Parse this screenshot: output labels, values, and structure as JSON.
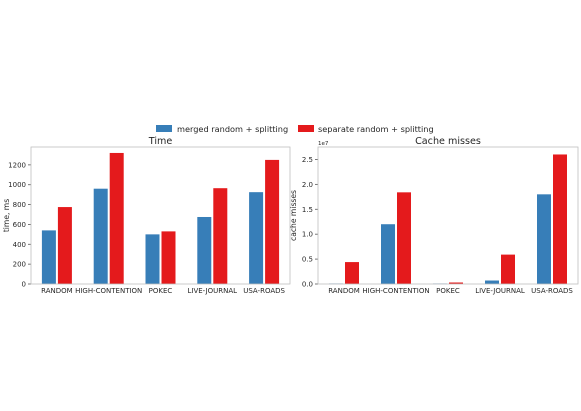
{
  "legend": {
    "placement": "top-center",
    "entries": [
      {
        "label": "merged random + splitting",
        "color": "#377eb8"
      },
      {
        "label": "separate random + splitting",
        "color": "#e41a1c"
      }
    ]
  },
  "chart_data": [
    {
      "type": "bar",
      "title": "Time",
      "xlabel": "",
      "ylabel": "time, ms",
      "ylim": [
        0,
        1380
      ],
      "yticks": [
        0,
        200,
        400,
        600,
        800,
        1000,
        1200
      ],
      "ytick_labels": [
        "0",
        "200",
        "400",
        "600",
        "800",
        "1000",
        "1200"
      ],
      "grid": false,
      "categories": [
        "RANDOM",
        "HIGH-CONTENTION",
        "POKEC",
        "LIVE-JOURNAL",
        "USA-ROADS"
      ],
      "series": [
        {
          "name": "merged random + splitting",
          "color": "#377eb8",
          "values": [
            540,
            960,
            500,
            675,
            925
          ]
        },
        {
          "name": "separate random + splitting",
          "color": "#e41a1c",
          "values": [
            775,
            1320,
            530,
            965,
            1250
          ]
        }
      ]
    },
    {
      "type": "bar",
      "title": "Cache misses",
      "xlabel": "",
      "ylabel": "cache misses",
      "scale_label": "1e7",
      "ylim": [
        0,
        2.75
      ],
      "yticks": [
        0.0,
        0.5,
        1.0,
        1.5,
        2.0,
        2.5
      ],
      "ytick_labels": [
        "0.0",
        "0.5",
        "1.0",
        "1.5",
        "2.0",
        "2.5"
      ],
      "grid": false,
      "categories": [
        "RANDOM",
        "HIGH-CONTENTION",
        "POKEC",
        "LIVE-JOURNAL",
        "USA-ROADS"
      ],
      "series": [
        {
          "name": "merged random + splitting",
          "color": "#377eb8",
          "values": [
            0.01,
            1.2,
            0.01,
            0.07,
            1.8
          ]
        },
        {
          "name": "separate random + splitting",
          "color": "#e41a1c",
          "values": [
            0.44,
            1.84,
            0.03,
            0.59,
            2.6
          ]
        }
      ]
    }
  ]
}
